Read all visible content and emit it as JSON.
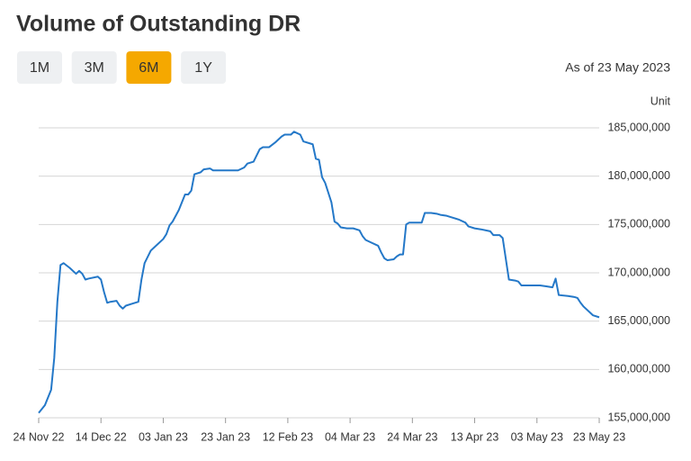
{
  "chart_data": {
    "type": "line",
    "title": "Volume of Outstanding DR",
    "ylabel": "Unit",
    "color": "#2478c8",
    "grid": true,
    "x": [
      "2022-11-24",
      "2022-11-26",
      "2022-11-28",
      "2022-11-29",
      "2022-11-30",
      "2022-12-01",
      "2022-12-02",
      "2022-12-04",
      "2022-12-06",
      "2022-12-07",
      "2022-12-08",
      "2022-12-09",
      "2022-12-10",
      "2022-12-13",
      "2022-12-14",
      "2022-12-15",
      "2022-12-16",
      "2022-12-17",
      "2022-12-19",
      "2022-12-20",
      "2022-12-21",
      "2022-12-22",
      "2022-12-24",
      "2022-12-26",
      "2022-12-27",
      "2022-12-28",
      "2022-12-30",
      "2023-01-01",
      "2023-01-03",
      "2023-01-04",
      "2023-01-05",
      "2023-01-06",
      "2023-01-08",
      "2023-01-10",
      "2023-01-11",
      "2023-01-12",
      "2023-01-13",
      "2023-01-15",
      "2023-01-16",
      "2023-01-18",
      "2023-01-19",
      "2023-01-22",
      "2023-01-25",
      "2023-01-27",
      "2023-01-29",
      "2023-01-30",
      "2023-02-01",
      "2023-02-03",
      "2023-02-04",
      "2023-02-06",
      "2023-02-08",
      "2023-02-10",
      "2023-02-11",
      "2023-02-13",
      "2023-02-14",
      "2023-02-16",
      "2023-02-17",
      "2023-02-20",
      "2023-02-21",
      "2023-02-22",
      "2023-02-23",
      "2023-02-24",
      "2023-02-26",
      "2023-02-27",
      "2023-02-28",
      "2023-03-01",
      "2023-03-03",
      "2023-03-05",
      "2023-03-07",
      "2023-03-08",
      "2023-03-09",
      "2023-03-11",
      "2023-03-13",
      "2023-03-14",
      "2023-03-15",
      "2023-03-16",
      "2023-03-18",
      "2023-03-19",
      "2023-03-20",
      "2023-03-21",
      "2023-03-22",
      "2023-03-23",
      "2023-03-25",
      "2023-03-27",
      "2023-03-28",
      "2023-03-30",
      "2023-04-01",
      "2023-04-02",
      "2023-04-04",
      "2023-04-06",
      "2023-04-08",
      "2023-04-10",
      "2023-04-11",
      "2023-04-13",
      "2023-04-15",
      "2023-04-18",
      "2023-04-19",
      "2023-04-21",
      "2023-04-22",
      "2023-04-24",
      "2023-04-26",
      "2023-04-27",
      "2023-04-28",
      "2023-05-01",
      "2023-05-04",
      "2023-05-06",
      "2023-05-08",
      "2023-05-09",
      "2023-05-10",
      "2023-05-13",
      "2023-05-15",
      "2023-05-16",
      "2023-05-17",
      "2023-05-18",
      "2023-05-20",
      "2023-05-21",
      "2023-05-23"
    ],
    "values": [
      155500000,
      156300000,
      157900000,
      161200000,
      167000000,
      170800000,
      171000000,
      170500000,
      169900000,
      170200000,
      169900000,
      169300000,
      169400000,
      169600000,
      169300000,
      168000000,
      166900000,
      167000000,
      167100000,
      166600000,
      166300000,
      166600000,
      166800000,
      167000000,
      169300000,
      171000000,
      172300000,
      172900000,
      173500000,
      174000000,
      174900000,
      175300000,
      176500000,
      178100000,
      178100000,
      178500000,
      180200000,
      180400000,
      180700000,
      180800000,
      180600000,
      180600000,
      180600000,
      180600000,
      180900000,
      181300000,
      181500000,
      182800000,
      183000000,
      183000000,
      183500000,
      184100000,
      184300000,
      184300000,
      184600000,
      184300000,
      183600000,
      183300000,
      181800000,
      181700000,
      179900000,
      179300000,
      177300000,
      175300000,
      175100000,
      174700000,
      174600000,
      174600000,
      174400000,
      173800000,
      173400000,
      173100000,
      172800000,
      172100000,
      171500000,
      171300000,
      171400000,
      171700000,
      171900000,
      171900000,
      175000000,
      175200000,
      175200000,
      175200000,
      176200000,
      176200000,
      176100000,
      176000000,
      175900000,
      175700000,
      175500000,
      175200000,
      174800000,
      174600000,
      174500000,
      174300000,
      173900000,
      173900000,
      173600000,
      169300000,
      169200000,
      169100000,
      168700000,
      168700000,
      168700000,
      168600000,
      168500000,
      169400000,
      167700000,
      167600000,
      167500000,
      167400000,
      166900000,
      166500000,
      165900000,
      165600000,
      165400000
    ],
    "xlim": [
      "2022-11-24",
      "2023-05-23"
    ],
    "xticks": [
      {
        "value": "2022-11-24",
        "label": "24 Nov 22"
      },
      {
        "value": "2022-12-14",
        "label": "14 Dec 22"
      },
      {
        "value": "2023-01-03",
        "label": "03 Jan 23"
      },
      {
        "value": "2023-01-23",
        "label": "23 Jan 23"
      },
      {
        "value": "2023-02-12",
        "label": "12 Feb 23"
      },
      {
        "value": "2023-03-04",
        "label": "04 Mar 23"
      },
      {
        "value": "2023-03-24",
        "label": "24 Mar 23"
      },
      {
        "value": "2023-04-13",
        "label": "13 Apr 23"
      },
      {
        "value": "2023-05-03",
        "label": "03 May 23"
      },
      {
        "value": "2023-05-23",
        "label": "23 May 23"
      }
    ],
    "ylim": [
      155000000,
      185000000
    ],
    "yticks": [
      {
        "value": 155000000,
        "label": "155,000,000"
      },
      {
        "value": 160000000,
        "label": "160,000,000"
      },
      {
        "value": 165000000,
        "label": "165,000,000"
      },
      {
        "value": 170000000,
        "label": "170,000,000"
      },
      {
        "value": 175000000,
        "label": "175,000,000"
      },
      {
        "value": 180000000,
        "label": "180,000,000"
      },
      {
        "value": 185000000,
        "label": "185,000,000"
      }
    ]
  },
  "range_buttons": [
    "1M",
    "3M",
    "6M",
    "1Y"
  ],
  "active_range": 2,
  "as_of": "As of 23 May 2023"
}
